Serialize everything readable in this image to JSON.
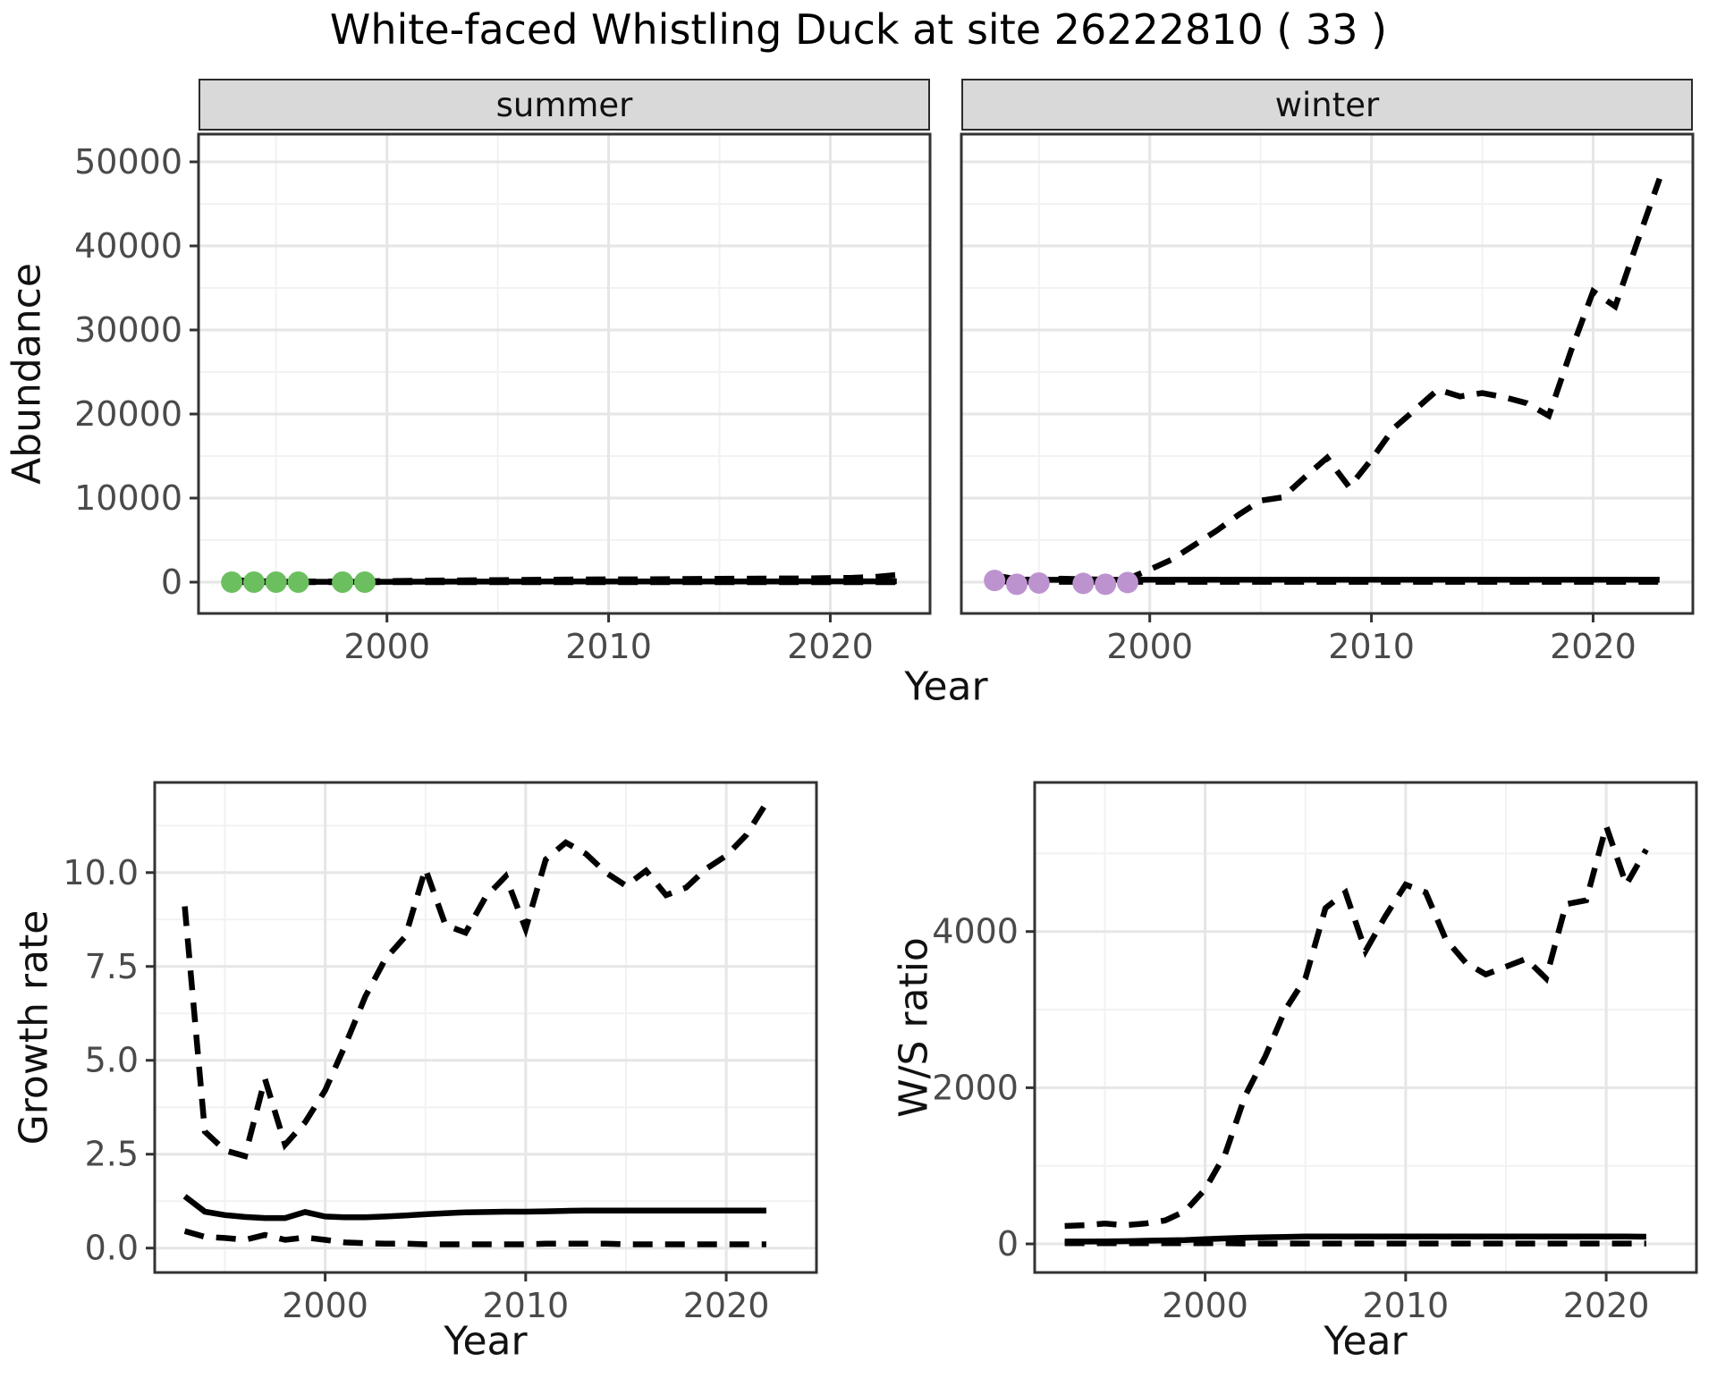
{
  "title": "White-faced Whistling Duck at site 26222810 ( 33 )",
  "axes": {
    "abundance": "Abundance",
    "year": "Year",
    "growth": "Growth rate",
    "ws": "W/S ratio"
  },
  "facets": [
    {
      "label": "summer"
    },
    {
      "label": "winter"
    }
  ],
  "colors": {
    "line": "#000000",
    "observed_summer": "#6cbf5f",
    "observed_winter": "#bd93cf",
    "strip_fill": "#d9d9d9",
    "grid_major": "#e6e6e6",
    "grid_minor": "#f2f2f2",
    "border": "#333333",
    "tick_text": "#4a4a4a",
    "tick_mark": "#333333"
  },
  "chart_data": [
    {
      "id": "summer",
      "type": "line",
      "facet": "summer",
      "xlabel": "Year",
      "ylabel": "Abundance",
      "x_domain": [
        1991.5,
        2024.5
      ],
      "y_domain": [
        -3723,
        53298
      ],
      "x_major": [
        2000,
        2010,
        2020
      ],
      "x_minor": [
        1995,
        2005,
        2015
      ],
      "y_major": [
        0,
        10000,
        20000,
        30000,
        40000,
        50000
      ],
      "y_minor": [
        5000,
        15000,
        25000,
        35000,
        45000
      ],
      "x_tick_labels": [
        "2000",
        "2010",
        "2020"
      ],
      "y_tick_labels": [
        "0",
        "10000",
        "20000",
        "30000",
        "40000",
        "50000"
      ],
      "show_y_labels": true,
      "years": [
        1993,
        1994,
        1995,
        1996,
        1997,
        1998,
        1999,
        2000,
        2001,
        2002,
        2003,
        2004,
        2005,
        2006,
        2007,
        2008,
        2009,
        2010,
        2011,
        2012,
        2013,
        2014,
        2015,
        2016,
        2017,
        2018,
        2019,
        2020,
        2021,
        2022,
        2023
      ],
      "series": [
        {
          "name": "lower_95ci",
          "style": "dashed",
          "values": [
            8,
            5,
            4,
            4,
            4,
            4,
            4,
            5,
            5,
            5,
            5,
            5,
            5,
            5,
            5,
            5,
            5,
            5,
            5,
            5,
            5,
            5,
            5,
            5,
            5,
            5,
            5,
            5,
            5,
            5,
            5
          ]
        },
        {
          "name": "median",
          "style": "solid",
          "values": [
            60,
            45,
            40,
            38,
            38,
            38,
            42,
            48,
            52,
            56,
            60,
            63,
            66,
            69,
            71,
            73,
            75,
            77,
            78,
            80,
            82,
            83,
            85,
            86,
            88,
            89,
            91,
            93,
            95,
            98,
            105
          ]
        },
        {
          "name": "upper_95ci",
          "style": "dashed",
          "values": [
            260,
            130,
            90,
            85,
            85,
            85,
            105,
            130,
            160,
            185,
            205,
            225,
            245,
            265,
            285,
            305,
            320,
            335,
            325,
            345,
            370,
            385,
            400,
            415,
            425,
            435,
            450,
            495,
            525,
            620,
            850
          ]
        }
      ],
      "points": {
        "name": "observed-count",
        "color": "#6cbf5f",
        "years": [
          1993,
          1994,
          1995,
          1996,
          1998,
          1999
        ],
        "values": [
          0,
          0,
          0,
          0,
          0,
          0
        ]
      }
    },
    {
      "id": "winter",
      "type": "line",
      "facet": "winter",
      "xlabel": "Year",
      "ylabel": "Abundance",
      "x_domain": [
        1991.5,
        2024.5
      ],
      "y_domain": [
        -3723,
        53298
      ],
      "x_major": [
        2000,
        2010,
        2020
      ],
      "x_minor": [
        1995,
        2005,
        2015
      ],
      "y_major": [
        0,
        10000,
        20000,
        30000,
        40000,
        50000
      ],
      "y_minor": [
        5000,
        15000,
        25000,
        35000,
        45000
      ],
      "x_tick_labels": [
        "2000",
        "2010",
        "2020"
      ],
      "y_tick_labels": [
        "0",
        "10000",
        "20000",
        "30000",
        "40000",
        "50000"
      ],
      "show_y_labels": false,
      "years": [
        1993,
        1994,
        1995,
        1996,
        1997,
        1998,
        1999,
        2000,
        2001,
        2002,
        2003,
        2004,
        2005,
        2006,
        2007,
        2008,
        2009,
        2010,
        2011,
        2012,
        2013,
        2014,
        2015,
        2016,
        2017,
        2018,
        2019,
        2020,
        2021,
        2022,
        2023
      ],
      "series": [
        {
          "name": "lower_95ci",
          "style": "dashed",
          "values": [
            80,
            60,
            50,
            45,
            45,
            45,
            45,
            45,
            45,
            45,
            45,
            45,
            45,
            45,
            45,
            45,
            45,
            45,
            45,
            45,
            45,
            45,
            45,
            45,
            45,
            45,
            45,
            45,
            45,
            45,
            45
          ]
        },
        {
          "name": "median",
          "style": "solid",
          "values": [
            350,
            300,
            280,
            280,
            280,
            280,
            280,
            285,
            290,
            290,
            295,
            295,
            300,
            300,
            300,
            300,
            300,
            300,
            300,
            300,
            300,
            300,
            300,
            300,
            300,
            300,
            300,
            300,
            300,
            300,
            300
          ]
        },
        {
          "name": "upper_95ci",
          "style": "dashed",
          "values": [
            800,
            350,
            250,
            420,
            350,
            300,
            380,
            1500,
            2700,
            4400,
            6100,
            8000,
            9700,
            10100,
            12500,
            14800,
            11300,
            14600,
            18300,
            20600,
            22900,
            22100,
            22500,
            22000,
            21300,
            19800,
            27500,
            34600,
            32800,
            40500,
            48000
          ]
        }
      ],
      "points": {
        "name": "observed-count",
        "color": "#bd93cf",
        "years": [
          1993,
          1994,
          1995,
          1997,
          1998,
          1999
        ],
        "values": [
          200,
          -250,
          -100,
          -150,
          -250,
          -50
        ]
      }
    },
    {
      "id": "growth",
      "type": "line",
      "facet": null,
      "xlabel": "Year",
      "ylabel": "Growth rate",
      "x_domain": [
        1991.5,
        2024.5
      ],
      "y_domain": [
        -0.65,
        12.4
      ],
      "x_major": [
        2000,
        2010,
        2020
      ],
      "x_minor": [
        1995,
        2005,
        2015
      ],
      "y_major": [
        0.0,
        2.5,
        5.0,
        7.5,
        10.0
      ],
      "y_minor": [
        1.25,
        3.75,
        6.25,
        8.75,
        11.25
      ],
      "x_tick_labels": [
        "2000",
        "2010",
        "2020"
      ],
      "y_tick_labels": [
        "0.0",
        "2.5",
        "5.0",
        "7.5",
        "10.0"
      ],
      "show_y_labels": true,
      "years": [
        1993,
        1994,
        1995,
        1996,
        1997,
        1998,
        1999,
        2000,
        2001,
        2002,
        2003,
        2004,
        2005,
        2006,
        2007,
        2008,
        2009,
        2010,
        2011,
        2012,
        2013,
        2014,
        2015,
        2016,
        2017,
        2018,
        2019,
        2020,
        2021,
        2022
      ],
      "series": [
        {
          "name": "lower_95ci",
          "style": "dashed",
          "values": [
            0.45,
            0.3,
            0.27,
            0.22,
            0.35,
            0.22,
            0.28,
            0.22,
            0.15,
            0.13,
            0.12,
            0.12,
            0.1,
            0.1,
            0.1,
            0.1,
            0.1,
            0.1,
            0.12,
            0.12,
            0.12,
            0.12,
            0.1,
            0.1,
            0.1,
            0.1,
            0.1,
            0.1,
            0.1,
            0.1
          ]
        },
        {
          "name": "median",
          "style": "solid",
          "values": [
            1.38,
            0.97,
            0.88,
            0.83,
            0.8,
            0.8,
            0.96,
            0.84,
            0.82,
            0.82,
            0.84,
            0.87,
            0.9,
            0.93,
            0.95,
            0.96,
            0.97,
            0.97,
            0.98,
            0.99,
            1.0,
            1.0,
            1.0,
            1.0,
            1.0,
            1.0,
            1.0,
            1.0,
            1.0,
            1.0
          ]
        },
        {
          "name": "upper_95ci",
          "style": "dashed",
          "values": [
            9.1,
            3.1,
            2.6,
            2.45,
            4.5,
            2.75,
            3.35,
            4.2,
            5.4,
            6.7,
            7.7,
            8.3,
            10.1,
            8.6,
            8.4,
            9.35,
            9.9,
            8.5,
            10.35,
            10.8,
            10.5,
            10.0,
            9.65,
            10.05,
            9.4,
            9.6,
            10.1,
            10.45,
            11.0,
            11.85
          ]
        }
      ],
      "points": null
    },
    {
      "id": "ws",
      "type": "line",
      "facet": null,
      "xlabel": "Year",
      "ylabel": "W/S ratio",
      "x_domain": [
        1991.5,
        2024.5
      ],
      "y_domain": [
        -366,
        5909
      ],
      "x_major": [
        2000,
        2010,
        2020
      ],
      "x_minor": [
        1995,
        2005,
        2015
      ],
      "y_major": [
        0,
        2000,
        4000
      ],
      "y_minor": [
        1000,
        3000,
        5000
      ],
      "x_tick_labels": [
        "2000",
        "2010",
        "2020"
      ],
      "y_tick_labels": [
        "0",
        "2000",
        "4000"
      ],
      "show_y_labels": true,
      "years": [
        1993,
        1994,
        1995,
        1996,
        1997,
        1998,
        1999,
        2000,
        2001,
        2002,
        2003,
        2004,
        2005,
        2006,
        2007,
        2008,
        2009,
        2010,
        2011,
        2012,
        2013,
        2014,
        2015,
        2016,
        2017,
        2018,
        2019,
        2020,
        2021,
        2022
      ],
      "series": [
        {
          "name": "lower_95ci",
          "style": "dashed",
          "values": [
            10,
            10,
            10,
            10,
            10,
            10,
            10,
            8,
            8,
            5,
            5,
            5,
            5,
            5,
            5,
            5,
            5,
            5,
            5,
            5,
            5,
            5,
            5,
            5,
            5,
            5,
            5,
            5,
            5,
            5
          ]
        },
        {
          "name": "median",
          "style": "solid",
          "values": [
            30,
            30,
            32,
            35,
            40,
            45,
            50,
            60,
            70,
            80,
            85,
            90,
            95,
            95,
            95,
            95,
            95,
            95,
            95,
            95,
            95,
            95,
            95,
            95,
            95,
            95,
            95,
            95,
            95,
            92
          ]
        },
        {
          "name": "upper_95ci",
          "style": "dashed",
          "values": [
            230,
            240,
            260,
            240,
            260,
            300,
            420,
            700,
            1150,
            1900,
            2400,
            3000,
            3400,
            4300,
            4500,
            3750,
            4200,
            4600,
            4500,
            3900,
            3600,
            3450,
            3550,
            3650,
            3400,
            4350,
            4400,
            5350,
            4600,
            5050
          ]
        }
      ],
      "points": null
    }
  ]
}
